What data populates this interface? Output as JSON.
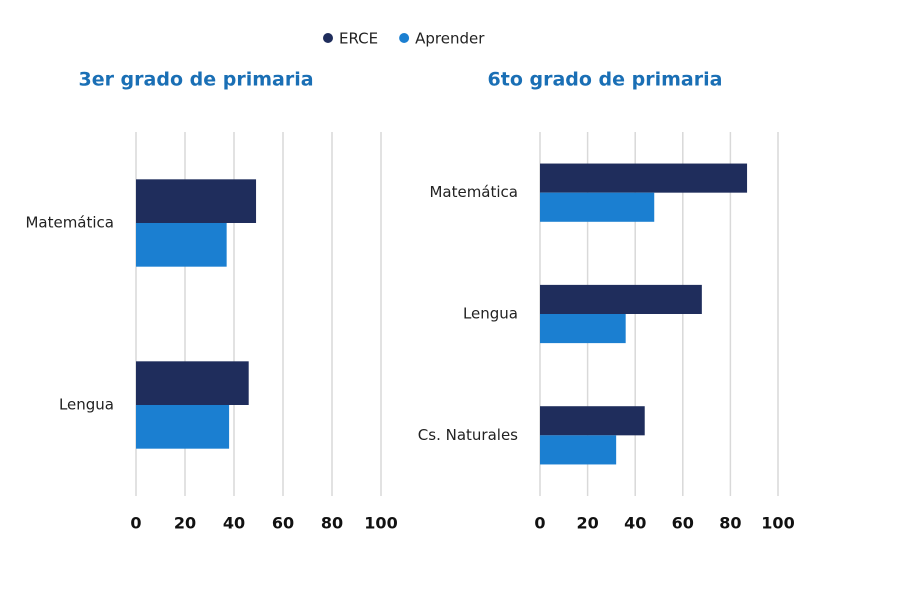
{
  "chart_data": [
    {
      "type": "bar",
      "orientation": "horizontal",
      "title": "3er grado de primaria",
      "categories": [
        "Matemática",
        "Lengua"
      ],
      "series": [
        {
          "name": "ERCE",
          "color": "#1f2d5c",
          "values": [
            49,
            46
          ]
        },
        {
          "name": "Aprender",
          "color": "#1b7fd1",
          "values": [
            37,
            38
          ]
        }
      ],
      "xlim": [
        0,
        100
      ],
      "xticks": [
        0,
        20,
        40,
        60,
        80,
        100
      ],
      "grid": true
    },
    {
      "type": "bar",
      "orientation": "horizontal",
      "title": "6to grado de primaria",
      "categories": [
        "Matemática",
        "Lengua",
        "Cs. Naturales"
      ],
      "series": [
        {
          "color": "#1f2d5c",
          "values": [
            87,
            68,
            44
          ]
        },
        {
          "color": "#1b7fd1",
          "values": [
            48,
            36,
            32
          ]
        }
      ],
      "xlim": [
        0,
        100
      ],
      "xticks": [
        0,
        20,
        40,
        60,
        80,
        100
      ],
      "grid": true
    }
  ]
}
